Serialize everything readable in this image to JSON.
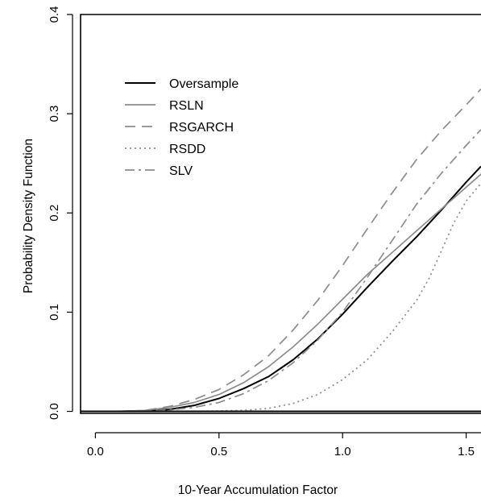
{
  "chart_data": {
    "type": "line",
    "title": "",
    "xlabel": "10-Year Accumulation Factor",
    "ylabel": "Probability Density Function",
    "xlim": [
      -0.06,
      1.56
    ],
    "ylim": [
      -0.002,
      0.4
    ],
    "x_ticks": [
      0.0,
      0.5,
      1.0,
      1.5
    ],
    "x_tick_labels": [
      "0.0",
      "0.5",
      "1.0",
      "1.5"
    ],
    "y_ticks": [
      0.0,
      0.1,
      0.2,
      0.3,
      0.4
    ],
    "y_tick_labels": [
      "0.0",
      "0.1",
      "0.2",
      "0.3",
      "0.4"
    ],
    "grid": false,
    "legend_position": "top-left",
    "series": [
      {
        "name": "Oversample",
        "color": "#000000",
        "dash": "solid",
        "x": [
          0.0,
          0.1,
          0.2,
          0.3,
          0.4,
          0.5,
          0.6,
          0.7,
          0.8,
          0.9,
          1.0,
          1.1,
          1.2,
          1.3,
          1.4,
          1.5,
          1.56
        ],
        "y": [
          0.0,
          0.0,
          0.0005,
          0.002,
          0.006,
          0.013,
          0.023,
          0.035,
          0.052,
          0.073,
          0.098,
          0.125,
          0.151,
          0.176,
          0.203,
          0.231,
          0.247
        ]
      },
      {
        "name": "RSLN",
        "color": "#8c8c8c",
        "dash": "solid",
        "x": [
          0.0,
          0.1,
          0.2,
          0.3,
          0.4,
          0.5,
          0.6,
          0.7,
          0.8,
          0.9,
          1.0,
          1.1,
          1.2,
          1.3,
          1.4,
          1.5,
          1.56
        ],
        "y": [
          0.0,
          0.0,
          0.001,
          0.004,
          0.009,
          0.017,
          0.029,
          0.045,
          0.065,
          0.088,
          0.113,
          0.138,
          0.16,
          0.182,
          0.204,
          0.226,
          0.239
        ]
      },
      {
        "name": "RSGARCH",
        "color": "#8c8c8c",
        "dash": "dashed",
        "x": [
          0.0,
          0.1,
          0.2,
          0.3,
          0.4,
          0.5,
          0.6,
          0.7,
          0.8,
          0.9,
          1.0,
          1.1,
          1.2,
          1.3,
          1.4,
          1.5,
          1.56
        ],
        "y": [
          0.0,
          0.0,
          0.001,
          0.005,
          0.012,
          0.022,
          0.037,
          0.056,
          0.082,
          0.112,
          0.147,
          0.184,
          0.22,
          0.254,
          0.283,
          0.309,
          0.325
        ]
      },
      {
        "name": "RSDD",
        "color": "#8c8c8c",
        "dash": "dotted",
        "x": [
          0.0,
          0.2,
          0.4,
          0.5,
          0.6,
          0.7,
          0.8,
          0.9,
          1.0,
          1.1,
          1.2,
          1.3,
          1.35,
          1.4,
          1.45,
          1.5,
          1.56
        ],
        "y": [
          0.0,
          0.0,
          0.0,
          0.0005,
          0.001,
          0.003,
          0.008,
          0.017,
          0.032,
          0.052,
          0.08,
          0.112,
          0.134,
          0.162,
          0.19,
          0.212,
          0.23
        ]
      },
      {
        "name": "SLV",
        "color": "#8c8c8c",
        "dash": "dashdot",
        "x": [
          0.0,
          0.1,
          0.2,
          0.3,
          0.4,
          0.5,
          0.6,
          0.7,
          0.8,
          0.9,
          1.0,
          1.1,
          1.2,
          1.3,
          1.4,
          1.5,
          1.56
        ],
        "y": [
          0.0,
          0.0,
          0.0005,
          0.0015,
          0.004,
          0.009,
          0.018,
          0.031,
          0.049,
          0.072,
          0.1,
          0.135,
          0.172,
          0.209,
          0.24,
          0.268,
          0.284
        ]
      }
    ]
  }
}
